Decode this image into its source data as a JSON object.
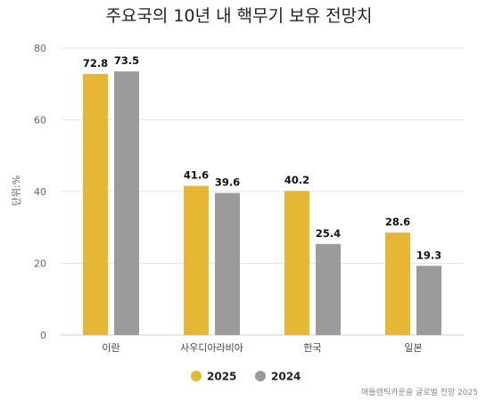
{
  "chart_data": {
    "type": "bar",
    "title": "주요국의 10년 내 핵무기 보유 전망치",
    "ylabel": "단위:%",
    "xlabel": "",
    "ylim": [
      0,
      80
    ],
    "yticks": [
      0,
      20,
      40,
      60,
      80
    ],
    "grid": true,
    "legend": "bottom",
    "categories": [
      "이란",
      "사우디아라비아",
      "한국",
      "일본"
    ],
    "series": [
      {
        "name": "2025",
        "color": "#E6B735",
        "values": [
          72.8,
          41.6,
          40.2,
          28.6
        ]
      },
      {
        "name": "2024",
        "color": "#9B9B9B",
        "values": [
          73.5,
          39.6,
          25.4,
          19.3
        ]
      }
    ],
    "source": "애틀랜틱카운슬 글로벌 전망 2025"
  }
}
